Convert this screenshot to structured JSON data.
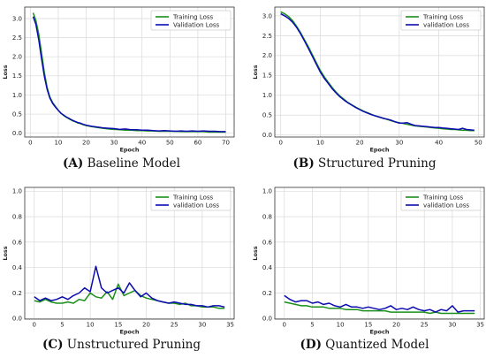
{
  "captions": [
    {
      "letter": "(A)",
      "text": "Baseline Model"
    },
    {
      "letter": "(B)",
      "text": "Structured Pruning"
    },
    {
      "letter": "(C)",
      "text": "Unstructured Pruning"
    },
    {
      "letter": "(D)",
      "text": "Quantized Model"
    }
  ],
  "colors": {
    "training": "#1a8f1a",
    "validation": "#0b0bb0",
    "grid": "#d9d9d9"
  },
  "chart_data": [
    {
      "type": "line",
      "xlabel": "Epoch",
      "ylabel": "Loss",
      "xlim": [
        -2,
        73
      ],
      "ylim": [
        -0.1,
        3.3
      ],
      "xticks": [
        0,
        10,
        20,
        30,
        40,
        50,
        60,
        70
      ],
      "yticks": [
        0.0,
        0.5,
        1.0,
        1.5,
        2.0,
        2.5,
        3.0
      ],
      "ytick_decimals": 1,
      "grid": true,
      "legend": "top-right",
      "series": [
        {
          "name": "Training Loss",
          "x": [
            1,
            2,
            3,
            4,
            5,
            6,
            7,
            8,
            9,
            10,
            11,
            12,
            13,
            14,
            15,
            16,
            17,
            18,
            19,
            20,
            22,
            24,
            26,
            28,
            30,
            32,
            34,
            36,
            38,
            40,
            42,
            44,
            46,
            48,
            50,
            52,
            54,
            56,
            58,
            60,
            62,
            64,
            66,
            68,
            70
          ],
          "values": [
            3.15,
            2.95,
            2.6,
            2.1,
            1.6,
            1.2,
            0.95,
            0.8,
            0.7,
            0.6,
            0.52,
            0.46,
            0.41,
            0.37,
            0.33,
            0.3,
            0.27,
            0.25,
            0.22,
            0.2,
            0.17,
            0.15,
            0.13,
            0.11,
            0.1,
            0.09,
            0.08,
            0.08,
            0.07,
            0.07,
            0.06,
            0.06,
            0.05,
            0.05,
            0.05,
            0.05,
            0.04,
            0.04,
            0.04,
            0.04,
            0.04,
            0.03,
            0.03,
            0.03,
            0.03
          ]
        },
        {
          "name": "Validation Loss",
          "x": [
            1,
            2,
            3,
            4,
            5,
            6,
            7,
            8,
            9,
            10,
            11,
            12,
            13,
            14,
            15,
            16,
            17,
            18,
            19,
            20,
            22,
            24,
            26,
            28,
            30,
            32,
            34,
            36,
            38,
            40,
            42,
            44,
            46,
            48,
            50,
            52,
            54,
            56,
            58,
            60,
            62,
            64,
            66,
            68,
            70
          ],
          "values": [
            3.05,
            2.85,
            2.45,
            1.95,
            1.5,
            1.15,
            0.92,
            0.78,
            0.68,
            0.6,
            0.52,
            0.47,
            0.42,
            0.38,
            0.34,
            0.31,
            0.28,
            0.26,
            0.23,
            0.21,
            0.18,
            0.16,
            0.14,
            0.13,
            0.12,
            0.1,
            0.11,
            0.09,
            0.09,
            0.08,
            0.08,
            0.07,
            0.06,
            0.07,
            0.06,
            0.05,
            0.06,
            0.05,
            0.06,
            0.05,
            0.06,
            0.05,
            0.05,
            0.04,
            0.04
          ]
        }
      ]
    },
    {
      "type": "line",
      "xlabel": "Epoch",
      "ylabel": "Loss",
      "xlim": [
        -1.5,
        51.5
      ],
      "ylim": [
        -0.05,
        3.22
      ],
      "xticks": [
        0,
        10,
        20,
        30,
        40,
        50
      ],
      "yticks": [
        0.0,
        0.5,
        1.0,
        1.5,
        2.0,
        2.5,
        3.0
      ],
      "ytick_decimals": 1,
      "grid": true,
      "legend": "top-right",
      "series": [
        {
          "name": "Training Loss",
          "x": [
            0,
            1,
            2,
            3,
            4,
            5,
            6,
            7,
            8,
            9,
            10,
            11,
            12,
            13,
            14,
            15,
            16,
            17,
            18,
            19,
            20,
            21,
            22,
            23,
            24,
            25,
            26,
            27,
            28,
            29,
            30,
            31,
            32,
            33,
            34,
            35,
            36,
            37,
            38,
            39,
            40,
            41,
            42,
            43,
            44,
            45,
            46,
            47,
            48,
            49
          ],
          "values": [
            3.1,
            3.05,
            2.98,
            2.88,
            2.74,
            2.58,
            2.4,
            2.22,
            2.02,
            1.82,
            1.63,
            1.47,
            1.33,
            1.2,
            1.08,
            0.98,
            0.9,
            0.82,
            0.76,
            0.7,
            0.65,
            0.6,
            0.56,
            0.52,
            0.48,
            0.45,
            0.42,
            0.39,
            0.36,
            0.33,
            0.31,
            0.29,
            0.27,
            0.25,
            0.23,
            0.22,
            0.21,
            0.2,
            0.19,
            0.18,
            0.17,
            0.16,
            0.15,
            0.14,
            0.14,
            0.13,
            0.12,
            0.12,
            0.11,
            0.11
          ]
        },
        {
          "name": "validation Loss",
          "x": [
            0,
            1,
            2,
            3,
            4,
            5,
            6,
            7,
            8,
            9,
            10,
            11,
            12,
            13,
            14,
            15,
            16,
            17,
            18,
            19,
            20,
            21,
            22,
            23,
            24,
            25,
            26,
            27,
            28,
            29,
            30,
            31,
            32,
            33,
            34,
            35,
            36,
            37,
            38,
            39,
            40,
            41,
            42,
            43,
            44,
            45,
            46,
            47,
            48,
            49
          ],
          "values": [
            3.05,
            3.0,
            2.93,
            2.84,
            2.71,
            2.55,
            2.37,
            2.18,
            1.98,
            1.78,
            1.59,
            1.43,
            1.3,
            1.17,
            1.06,
            0.96,
            0.88,
            0.81,
            0.75,
            0.69,
            0.64,
            0.59,
            0.55,
            0.51,
            0.48,
            0.45,
            0.42,
            0.4,
            0.37,
            0.33,
            0.3,
            0.3,
            0.31,
            0.27,
            0.24,
            0.23,
            0.22,
            0.21,
            0.2,
            0.19,
            0.19,
            0.18,
            0.17,
            0.16,
            0.15,
            0.14,
            0.17,
            0.14,
            0.13,
            0.12
          ]
        }
      ]
    },
    {
      "type": "line",
      "xlabel": "Epoch",
      "ylabel": "Loss",
      "xlim": [
        -1.7,
        35.7
      ],
      "ylim": [
        -0.005,
        1.03
      ],
      "xticks": [
        0,
        5,
        10,
        15,
        20,
        25,
        30,
        35
      ],
      "yticks": [
        0.0,
        0.2,
        0.4,
        0.6,
        0.8,
        1.0
      ],
      "ytick_decimals": 1,
      "grid": true,
      "legend": "top-right",
      "series": [
        {
          "name": "Training Loss",
          "x": [
            0,
            1,
            2,
            3,
            4,
            5,
            6,
            7,
            8,
            9,
            10,
            11,
            12,
            13,
            14,
            15,
            16,
            17,
            18,
            19,
            20,
            21,
            22,
            23,
            24,
            25,
            26,
            27,
            28,
            29,
            30,
            31,
            32,
            33,
            34
          ],
          "values": [
            0.14,
            0.13,
            0.15,
            0.13,
            0.12,
            0.12,
            0.13,
            0.12,
            0.15,
            0.14,
            0.2,
            0.17,
            0.16,
            0.21,
            0.15,
            0.27,
            0.18,
            0.2,
            0.22,
            0.18,
            0.16,
            0.15,
            0.14,
            0.13,
            0.12,
            0.12,
            0.11,
            0.12,
            0.1,
            0.1,
            0.09,
            0.09,
            0.09,
            0.08,
            0.08
          ]
        },
        {
          "name": "validation Loss",
          "x": [
            0,
            1,
            2,
            3,
            4,
            5,
            6,
            7,
            8,
            9,
            10,
            11,
            12,
            13,
            14,
            15,
            16,
            17,
            18,
            19,
            20,
            21,
            22,
            23,
            24,
            25,
            26,
            27,
            28,
            29,
            30,
            31,
            32,
            33,
            34
          ],
          "values": [
            0.17,
            0.14,
            0.16,
            0.14,
            0.15,
            0.17,
            0.15,
            0.18,
            0.2,
            0.24,
            0.21,
            0.41,
            0.24,
            0.2,
            0.22,
            0.24,
            0.2,
            0.28,
            0.22,
            0.17,
            0.2,
            0.16,
            0.14,
            0.13,
            0.12,
            0.13,
            0.12,
            0.11,
            0.11,
            0.1,
            0.1,
            0.09,
            0.1,
            0.1,
            0.09
          ]
        }
      ]
    },
    {
      "type": "line",
      "xlabel": "Epoch",
      "ylabel": "Loss",
      "xlim": [
        -1.7,
        35.7
      ],
      "ylim": [
        -0.005,
        1.03
      ],
      "xticks": [
        0,
        5,
        10,
        15,
        20,
        25,
        30,
        35
      ],
      "yticks": [
        0.0,
        0.2,
        0.4,
        0.6,
        0.8,
        1.0
      ],
      "ytick_decimals": 1,
      "grid": true,
      "legend": "top-right",
      "series": [
        {
          "name": "Training Loss",
          "x": [
            0,
            1,
            2,
            3,
            4,
            5,
            6,
            7,
            8,
            9,
            10,
            11,
            12,
            13,
            14,
            15,
            16,
            17,
            18,
            19,
            20,
            21,
            22,
            23,
            24,
            25,
            26,
            27,
            28,
            29,
            30,
            31,
            32,
            33,
            34
          ],
          "values": [
            0.13,
            0.12,
            0.11,
            0.1,
            0.1,
            0.09,
            0.09,
            0.09,
            0.08,
            0.08,
            0.08,
            0.07,
            0.07,
            0.07,
            0.06,
            0.06,
            0.06,
            0.06,
            0.06,
            0.05,
            0.05,
            0.05,
            0.05,
            0.05,
            0.05,
            0.05,
            0.04,
            0.05,
            0.04,
            0.04,
            0.04,
            0.04,
            0.04,
            0.04,
            0.04
          ]
        },
        {
          "name": "validation Loss",
          "x": [
            0,
            1,
            2,
            3,
            4,
            5,
            6,
            7,
            8,
            9,
            10,
            11,
            12,
            13,
            14,
            15,
            16,
            17,
            18,
            19,
            20,
            21,
            22,
            23,
            24,
            25,
            26,
            27,
            28,
            29,
            30,
            31,
            32,
            33,
            34
          ],
          "values": [
            0.18,
            0.15,
            0.13,
            0.14,
            0.14,
            0.12,
            0.13,
            0.11,
            0.12,
            0.1,
            0.09,
            0.11,
            0.09,
            0.09,
            0.08,
            0.09,
            0.08,
            0.07,
            0.08,
            0.1,
            0.07,
            0.08,
            0.07,
            0.09,
            0.07,
            0.06,
            0.07,
            0.05,
            0.07,
            0.06,
            0.1,
            0.05,
            0.06,
            0.06,
            0.06
          ]
        }
      ]
    }
  ]
}
